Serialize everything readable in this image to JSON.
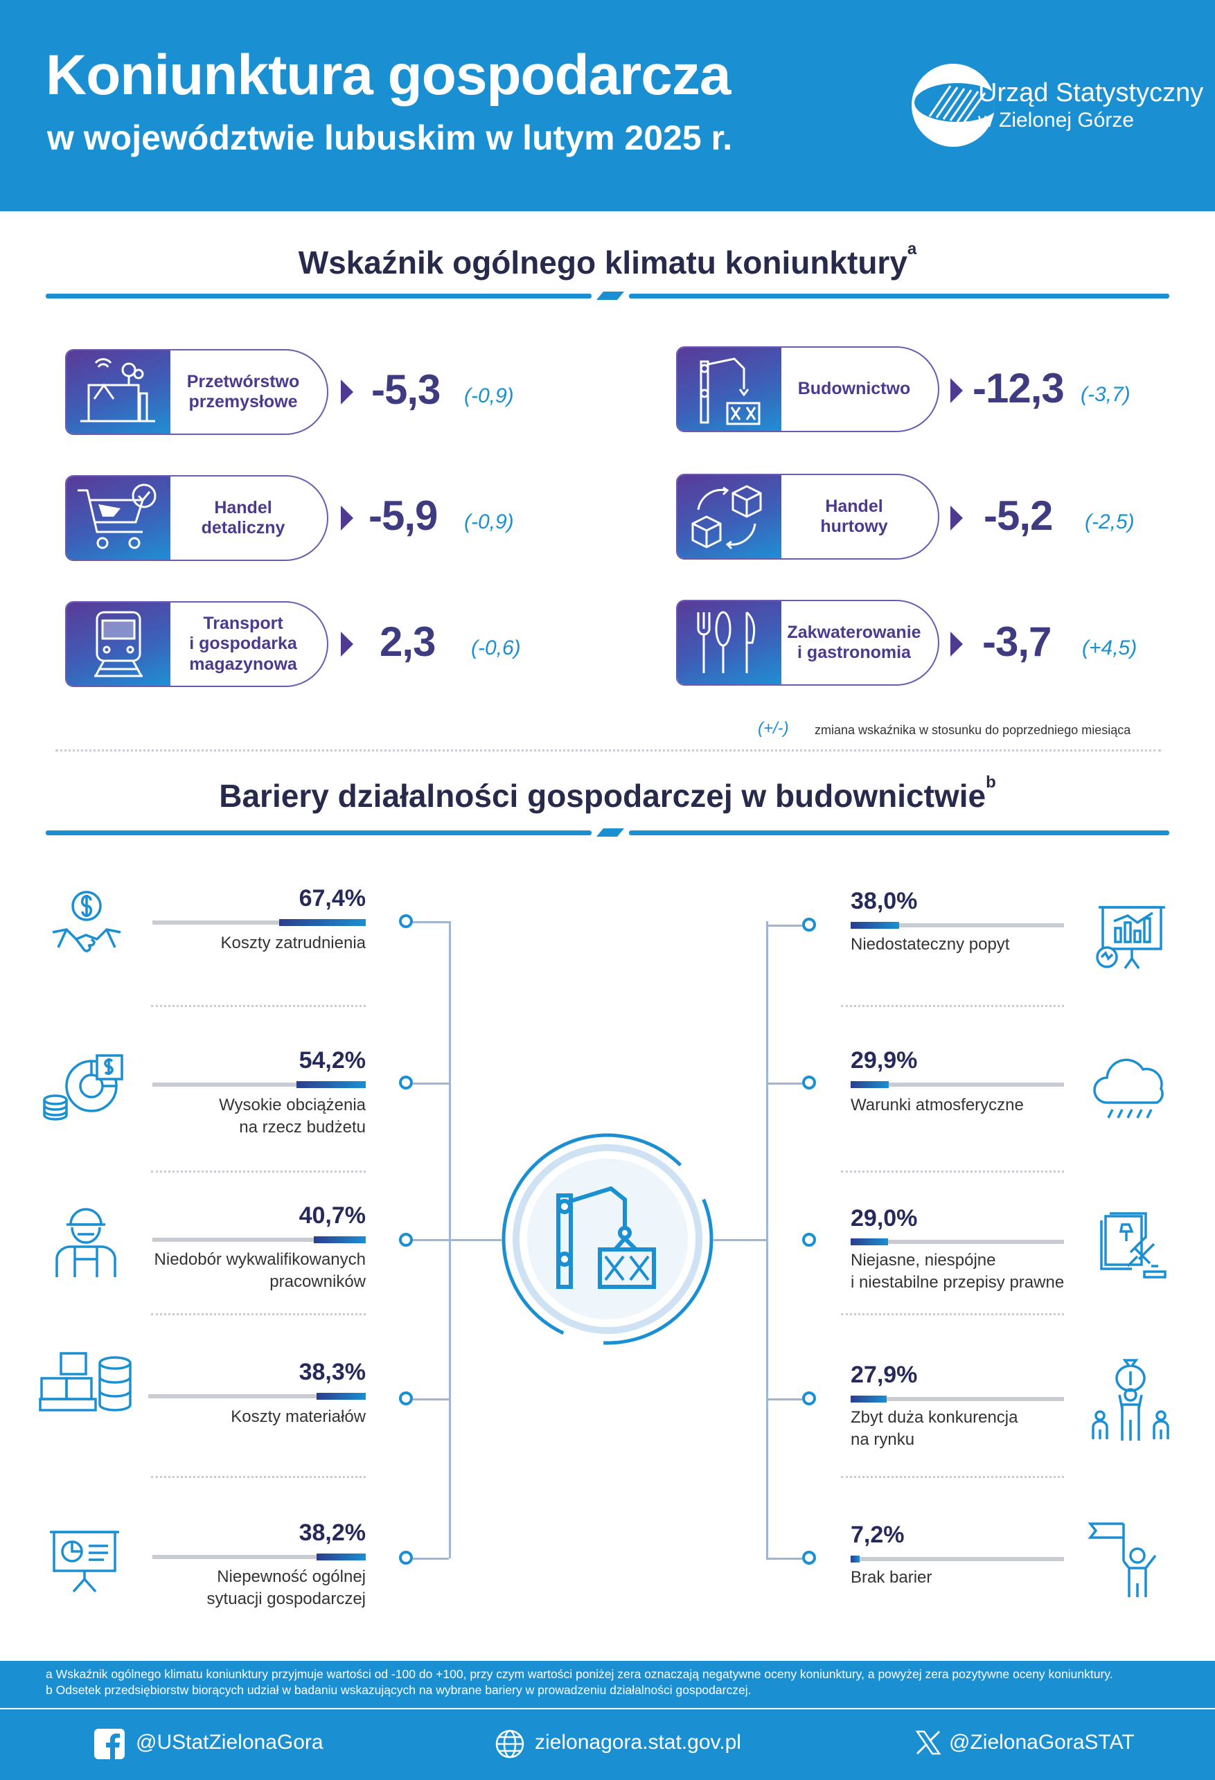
{
  "header": {
    "title": "Koniunktura gospodarcza",
    "subtitle": "w województwie lubuskim w lutym 2025 r.",
    "logo_line1": "Urząd Statystyczny",
    "logo_line2": "w Zielonej Górze"
  },
  "section1": {
    "title": "Wskaźnik ogólnego klimatu koniunktury",
    "footnote_mark": "a",
    "cards": [
      {
        "label": "Przetwórstwo\nprzemysłowe",
        "icon": "factory-icon",
        "value": "-5,3",
        "change": "(-0,9)"
      },
      {
        "label": "Budownictwo",
        "icon": "crane-icon",
        "value": "-12,3",
        "change": "(-3,7)"
      },
      {
        "label": "Handel\ndetaliczny",
        "icon": "shopping-cart-icon",
        "value": "-5,9",
        "change": "(-0,9)"
      },
      {
        "label": "Handel\nhurtowy",
        "icon": "boxes-icon",
        "value": "-5,2",
        "change": "(-2,5)"
      },
      {
        "label": "Transport\ni gospodarka\nmagazynowa",
        "icon": "train-icon",
        "value": "2,3",
        "change": "(-0,6)"
      },
      {
        "label": "Zakwaterowanie\ni gastronomia",
        "icon": "cutlery-icon",
        "value": "-3,7",
        "change": "(+4,5)"
      }
    ],
    "legend_symbol": "(+/-)",
    "legend_text": "zmiana wskaźnika w stosunku do poprzedniego miesiąca"
  },
  "section2": {
    "title": "Bariery działalności gospodarczej w budownictwie",
    "footnote_mark": "b",
    "left": [
      {
        "pct": "67,4%",
        "value": 67.4,
        "label": "Koszty zatrudnienia",
        "icon": "handshake-money-icon"
      },
      {
        "pct": "54,2%",
        "value": 54.2,
        "label": "Wysokie obciążenia\nna rzecz budżetu",
        "icon": "budget-chart-icon"
      },
      {
        "pct": "40,7%",
        "value": 40.7,
        "label": "Niedobór wykwalifikowanych\npracowników",
        "icon": "worker-icon"
      },
      {
        "pct": "38,3%",
        "value": 38.3,
        "label": "Koszty materiałów",
        "icon": "materials-icon"
      },
      {
        "pct": "38,2%",
        "value": 38.2,
        "label": "Niepewność ogólnej\nsytuacji gospodarczej",
        "icon": "presentation-icon"
      }
    ],
    "right": [
      {
        "pct": "38,0%",
        "value": 38.0,
        "label": "Niedostateczny popyt",
        "icon": "demand-chart-icon"
      },
      {
        "pct": "29,9%",
        "value": 29.9,
        "label": "Warunki atmosferyczne",
        "icon": "rain-cloud-icon"
      },
      {
        "pct": "29,0%",
        "value": 29.0,
        "label": "Niejasne, niespójne\ni niestabilne przepisy prawne",
        "icon": "law-gavel-icon"
      },
      {
        "pct": "27,9%",
        "value": 27.9,
        "label": "Zbyt duża konkurencja\nna rynku",
        "icon": "competition-icon"
      },
      {
        "pct": "7,2%",
        "value": 7.2,
        "label": "Brak barier",
        "icon": "flag-person-icon"
      }
    ]
  },
  "footer": {
    "note_a": "a Wskaźnik ogólnego klimatu koniunktury przyjmuje wartości od -100 do +100, przy czym wartości poniżej zera oznaczają negatywne oceny koniunktury, a powyżej zera pozytywne oceny koniunktury.",
    "note_b": "b Odsetek przedsiębiorstw biorących udział w badaniu wskazujących na wybrane bariery w prowadzeniu działalności gospodarczej.",
    "facebook": "@UStatZielonaGora",
    "website": "zielonagora.stat.gov.pl",
    "twitter": "@ZielonaGoraSTAT"
  },
  "colors": {
    "brand_blue": "#1a8fd2",
    "purple": "#4b3a8e",
    "navy": "#262a5a"
  }
}
